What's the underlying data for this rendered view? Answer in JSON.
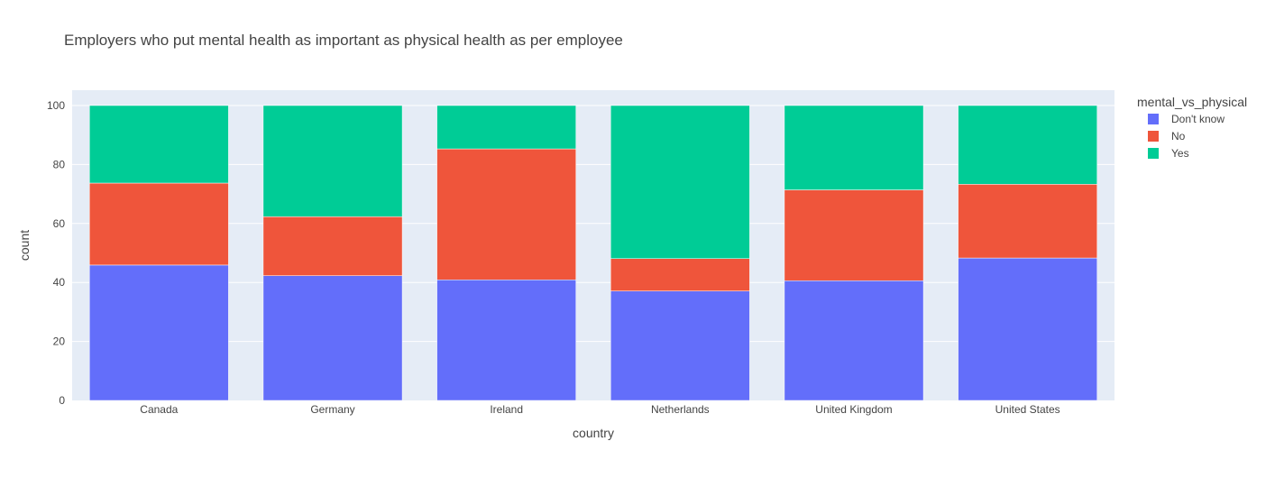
{
  "chart_data": {
    "type": "bar",
    "barmode": "stack",
    "title": "Employers who put mental health as important as physical health as per employee",
    "xlabel": "country",
    "ylabel": "count",
    "ylim": [
      0,
      100
    ],
    "yticks": [
      0,
      20,
      40,
      60,
      80,
      100
    ],
    "grid": true,
    "legend_title": "mental_vs_physical",
    "legend_position": "top-right",
    "categories": [
      "Canada",
      "Germany",
      "Ireland",
      "Netherlands",
      "United Kingdom",
      "United States"
    ],
    "series": [
      {
        "name": "Don't know",
        "color": "#636efa",
        "values": [
          45.9,
          42.3,
          40.9,
          37.1,
          40.6,
          48.3
        ]
      },
      {
        "name": "No",
        "color": "#ef553b",
        "values": [
          27.8,
          20.0,
          44.4,
          11.0,
          30.8,
          25.0
        ]
      },
      {
        "name": "Yes",
        "color": "#00cc96",
        "values": [
          26.3,
          37.7,
          14.7,
          51.9,
          28.6,
          26.7
        ]
      }
    ],
    "plot_background": "#e5ecf6",
    "gridline_color": "#ffffff"
  }
}
